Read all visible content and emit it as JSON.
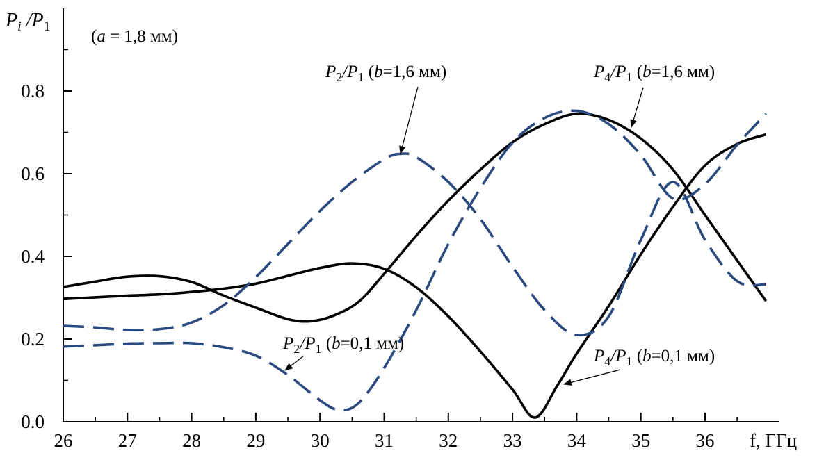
{
  "chart_data": {
    "type": "line",
    "title": "",
    "ylabel": {
      "main": "P",
      "sub": "i",
      "sep": " /P",
      "sub2": "1"
    },
    "xlabel": "f, ГГц",
    "parameter_note": {
      "open": "(",
      "var": "a",
      "rest": " = 1,8 мм)"
    },
    "xlim": [
      26,
      37
    ],
    "ylim": [
      0.0,
      0.85
    ],
    "x_ticks": [
      26,
      27,
      28,
      29,
      30,
      31,
      32,
      33,
      34,
      35,
      36
    ],
    "y_ticks": [
      "0.0",
      "0.2",
      "0.4",
      "0.6",
      "0.8"
    ],
    "y_tick_values": [
      0.0,
      0.2,
      0.4,
      0.6,
      0.8
    ],
    "grid": false,
    "colors": {
      "solid": "#000000",
      "dashed": "#2a4a7f"
    },
    "series": [
      {
        "key": "p4_b16",
        "style": "solid",
        "x": [
          26.0,
          26.5,
          27.0,
          27.5,
          28.0,
          28.5,
          29.0,
          29.5,
          29.85,
          30.2,
          30.6,
          31.0,
          31.5,
          32.0,
          32.5,
          33.0,
          33.5,
          34.0,
          34.5,
          35.0,
          35.5,
          36.0,
          36.5,
          36.95
        ],
        "y": [
          0.326,
          0.339,
          0.351,
          0.352,
          0.338,
          0.305,
          0.276,
          0.248,
          0.243,
          0.256,
          0.29,
          0.358,
          0.45,
          0.535,
          0.61,
          0.676,
          0.72,
          0.745,
          0.73,
          0.685,
          0.61,
          0.5,
          0.39,
          0.292
        ]
      },
      {
        "key": "p4_b01",
        "style": "solid",
        "x": [
          26.0,
          26.5,
          27.0,
          27.5,
          28.0,
          28.5,
          29.0,
          29.5,
          30.0,
          30.5,
          31.0,
          31.5,
          32.0,
          32.5,
          33.0,
          33.35,
          33.7,
          34.0,
          34.5,
          35.0,
          35.5,
          36.0,
          36.5,
          36.95
        ],
        "y": [
          0.297,
          0.301,
          0.305,
          0.308,
          0.314,
          0.322,
          0.334,
          0.353,
          0.372,
          0.383,
          0.37,
          0.325,
          0.255,
          0.17,
          0.078,
          0.01,
          0.088,
          0.165,
          0.28,
          0.405,
          0.52,
          0.62,
          0.672,
          0.695
        ]
      },
      {
        "key": "p2_b16",
        "style": "dashed",
        "x": [
          26.0,
          26.5,
          27.0,
          27.5,
          28.0,
          28.5,
          29.0,
          29.5,
          30.0,
          30.5,
          31.0,
          31.25,
          31.5,
          32.0,
          32.5,
          33.0,
          33.5,
          34.0,
          34.5,
          35.0,
          35.5,
          36.0,
          36.5,
          36.95
        ],
        "y": [
          0.232,
          0.228,
          0.222,
          0.224,
          0.24,
          0.282,
          0.35,
          0.43,
          0.51,
          0.58,
          0.635,
          0.648,
          0.64,
          0.58,
          0.49,
          0.375,
          0.27,
          0.21,
          0.255,
          0.44,
          0.58,
          0.44,
          0.34,
          0.332
        ]
      },
      {
        "key": "p2_b01",
        "style": "dashed",
        "x": [
          26.0,
          26.5,
          27.0,
          27.5,
          28.0,
          28.5,
          29.0,
          29.5,
          30.0,
          30.3,
          30.6,
          31.0,
          31.5,
          32.0,
          32.5,
          33.0,
          33.5,
          34.0,
          34.5,
          35.0,
          35.5,
          36.0,
          36.5,
          36.95
        ],
        "y": [
          0.182,
          0.185,
          0.189,
          0.19,
          0.19,
          0.18,
          0.16,
          0.113,
          0.052,
          0.028,
          0.045,
          0.13,
          0.27,
          0.43,
          0.565,
          0.675,
          0.735,
          0.752,
          0.72,
          0.645,
          0.54,
          0.575,
          0.67,
          0.745
        ]
      }
    ],
    "annotations": [
      {
        "key": "a1",
        "main": "P",
        "sub": "2",
        "mid": "/P",
        "sub2": "1",
        "open": " (",
        "var": "b",
        "rest": "=1,6 мм)"
      },
      {
        "key": "a2",
        "main": "P",
        "sub": "4",
        "mid": "/P",
        "sub2": "1",
        "open": " (",
        "var": "b",
        "rest": "=1,6 мм)"
      },
      {
        "key": "a3",
        "main": "P",
        "sub": "2",
        "mid": "/P",
        "sub2": "1",
        "open": " (",
        "var": "b",
        "rest": "=0,1 мм)"
      },
      {
        "key": "a4",
        "main": "P",
        "sub": "4",
        "mid": "/P",
        "sub2": "1",
        "open": " (",
        "var": "b",
        "rest": "=0,1 мм)"
      }
    ]
  }
}
